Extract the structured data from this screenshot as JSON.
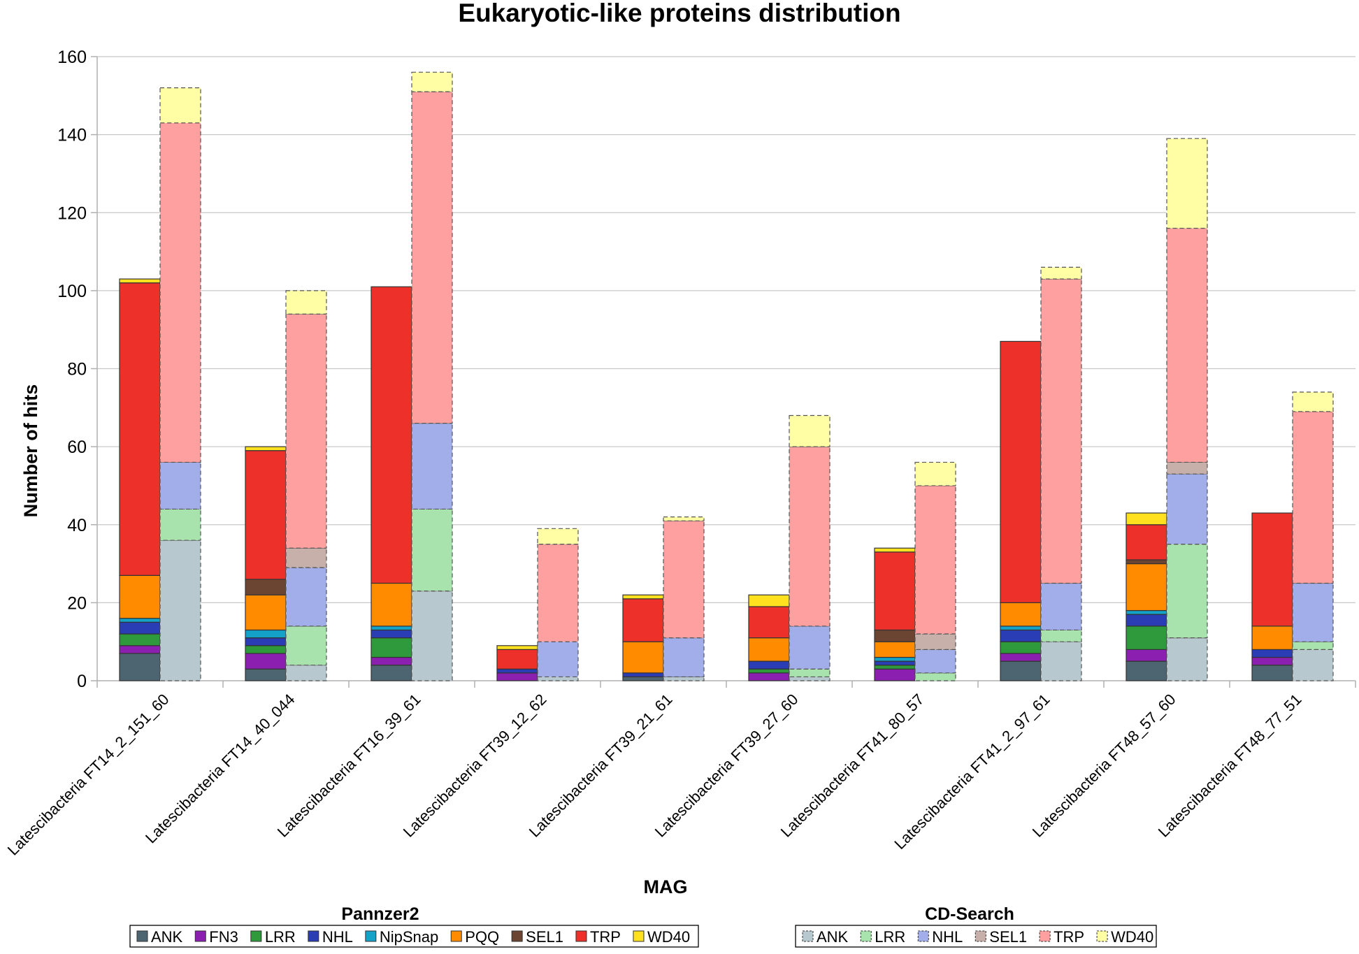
{
  "chart_data": {
    "type": "bar",
    "subtype": "stacked-grouped",
    "title": "Eukaryotic-like proteins distribution",
    "xlabel": "MAG",
    "ylabel": "Number of hits",
    "ylim": [
      0,
      160
    ],
    "yticks": [
      0,
      20,
      40,
      60,
      80,
      100,
      120,
      140,
      160
    ],
    "grid": true,
    "categories": [
      "Latescibacteria FT14_2_151_60",
      "Latescibacteria FT14_40_044",
      "Latescibacteria FT16_39_61",
      "Latescibacteria FT39_12_62",
      "Latescibacteria FT39_21_61",
      "Latescibacteria FT39_27_60",
      "Latescibacteria FT41_80_57",
      "Latescibacteria FT41_2_97_61",
      "Latescibacteria FT48_57_60",
      "Latescibacteria FT48_77_51"
    ],
    "groups": [
      {
        "name": "Pannzer2",
        "series": [
          {
            "name": "ANK",
            "color": "#4d6570",
            "values": [
              7,
              3,
              4,
              0,
              1,
              0,
              0,
              5,
              5,
              4
            ]
          },
          {
            "name": "FN3",
            "color": "#8b1fb0",
            "values": [
              2,
              4,
              2,
              2,
              0,
              2,
              3,
              2,
              3,
              2
            ]
          },
          {
            "name": "LRR",
            "color": "#2e9a3c",
            "values": [
              3,
              2,
              5,
              0,
              0,
              1,
              1,
              3,
              6,
              0
            ]
          },
          {
            "name": "NHL",
            "color": "#2a3db5",
            "values": [
              3,
              2,
              2,
              1,
              1,
              2,
              1,
              3,
              3,
              2
            ]
          },
          {
            "name": "NipSnap",
            "color": "#15a2c8",
            "values": [
              1,
              2,
              1,
              0,
              0,
              0,
              1,
              1,
              1,
              0
            ]
          },
          {
            "name": "PQQ",
            "color": "#ff8c00",
            "values": [
              11,
              9,
              11,
              0,
              8,
              6,
              4,
              6,
              12,
              6
            ]
          },
          {
            "name": "SEL1",
            "color": "#6b4532",
            "values": [
              0,
              4,
              0,
              0,
              0,
              0,
              3,
              0,
              1,
              0
            ]
          },
          {
            "name": "TRP",
            "color": "#ee302b",
            "values": [
              75,
              33,
              76,
              5,
              11,
              8,
              20,
              67,
              9,
              29
            ]
          },
          {
            "name": "WD40",
            "color": "#ffe11f",
            "values": [
              1,
              1,
              0,
              1,
              1,
              3,
              1,
              0,
              3,
              0
            ]
          }
        ]
      },
      {
        "name": "CD-Search",
        "series": [
          {
            "name": "ANK",
            "color": "#b8c8cf",
            "values": [
              36,
              4,
              23,
              1,
              1,
              1,
              0,
              10,
              11,
              8
            ]
          },
          {
            "name": "LRR",
            "color": "#a8e2ac",
            "values": [
              8,
              10,
              21,
              0,
              0,
              2,
              2,
              3,
              24,
              2
            ]
          },
          {
            "name": "NHL",
            "color": "#a2aeea",
            "values": [
              12,
              15,
              22,
              9,
              10,
              11,
              6,
              12,
              18,
              15
            ]
          },
          {
            "name": "SEL1",
            "color": "#c8b0aa",
            "values": [
              0,
              5,
              0,
              0,
              0,
              0,
              4,
              0,
              3,
              0
            ]
          },
          {
            "name": "TRP",
            "color": "#fea0a0",
            "values": [
              87,
              60,
              85,
              25,
              30,
              46,
              38,
              78,
              60,
              44
            ]
          },
          {
            "name": "WD40",
            "color": "#fffea4",
            "values": [
              9,
              6,
              5,
              4,
              1,
              8,
              6,
              3,
              23,
              5
            ]
          }
        ]
      }
    ],
    "legend": [
      {
        "title": "Pannzer2",
        "placement": "bottom-left"
      },
      {
        "title": "CD-Search",
        "placement": "bottom-right"
      }
    ]
  }
}
